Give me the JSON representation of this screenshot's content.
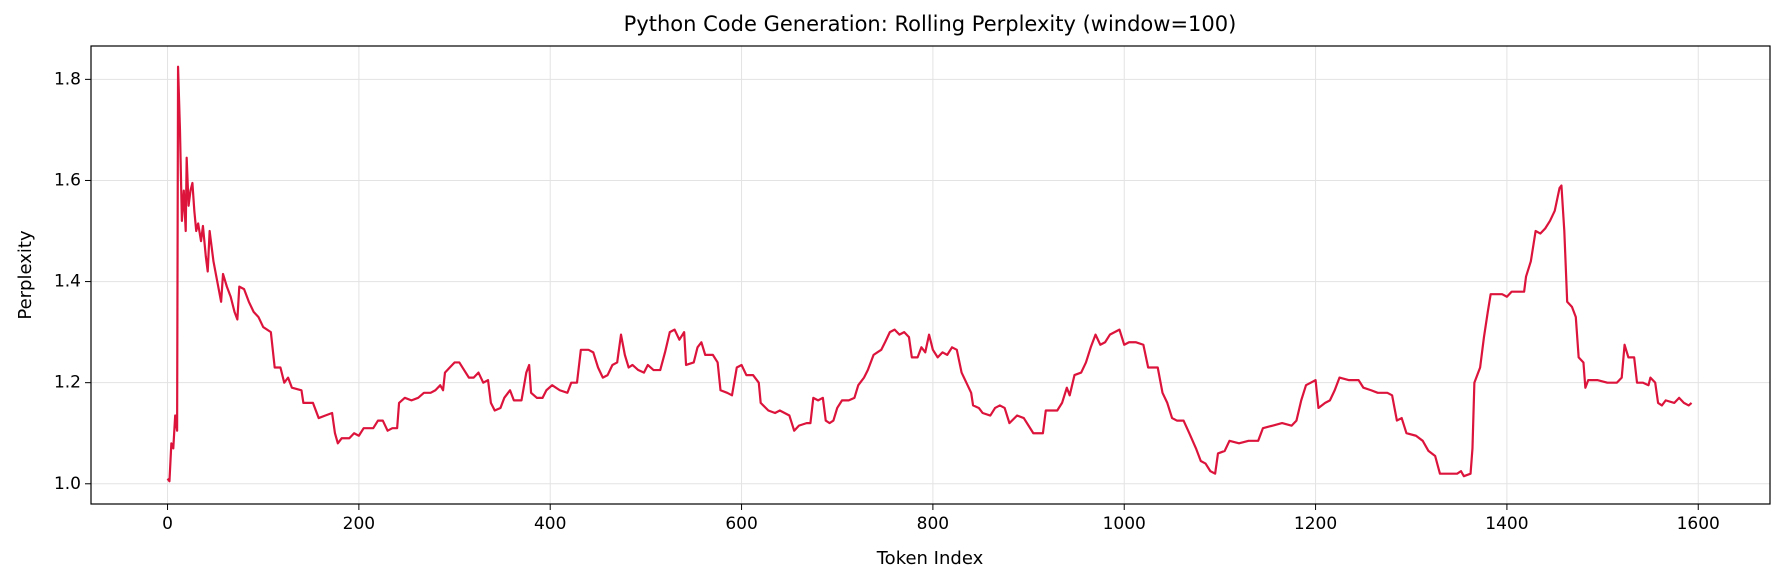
{
  "chart_data": {
    "type": "line",
    "title": "Python Code Generation: Rolling Perplexity (window=100)",
    "xlabel": "Token Index",
    "ylabel": "Perplexity",
    "color": "#dc143c",
    "grid": true,
    "xlim": [
      -80,
      1675
    ],
    "ylim": [
      0.96,
      1.866
    ],
    "xticks": [
      0,
      200,
      400,
      600,
      800,
      1000,
      1200,
      1400,
      1600
    ],
    "yticks": [
      {
        "value": 1,
        "label": "1.0"
      },
      1.2,
      1.4,
      1.6,
      1.8
    ],
    "x": [
      0,
      2,
      4,
      6,
      8,
      10,
      11,
      13,
      15,
      17,
      19,
      20,
      22,
      24,
      26,
      28,
      30,
      32,
      35,
      37,
      40,
      42,
      44,
      48,
      52,
      56,
      58,
      62,
      66,
      70,
      73,
      75,
      80,
      85,
      90,
      95,
      100,
      108,
      112,
      118,
      122,
      126,
      130,
      140,
      142,
      152,
      158,
      165,
      172,
      175,
      178,
      182,
      190,
      195,
      200,
      205,
      215,
      220,
      225,
      230,
      235,
      240,
      242,
      248,
      255,
      262,
      268,
      275,
      280,
      285,
      288,
      290,
      295,
      300,
      305,
      310,
      315,
      320,
      325,
      330,
      335,
      338,
      342,
      348,
      352,
      358,
      362,
      370,
      375,
      378,
      380,
      386,
      392,
      396,
      402,
      410,
      418,
      422,
      428,
      432,
      440,
      445,
      450,
      455,
      460,
      465,
      470,
      474,
      478,
      482,
      486,
      492,
      498,
      502,
      508,
      515,
      520,
      525,
      530,
      535,
      540,
      542,
      550,
      554,
      558,
      562,
      570,
      575,
      578,
      585,
      590,
      595,
      600,
      605,
      612,
      618,
      620,
      628,
      635,
      640,
      645,
      650,
      655,
      660,
      668,
      672,
      675,
      680,
      685,
      688,
      692,
      696,
      700,
      705,
      712,
      718,
      722,
      728,
      732,
      738,
      742,
      746,
      750,
      755,
      760,
      765,
      770,
      775,
      778,
      784,
      788,
      792,
      796,
      800,
      805,
      810,
      815,
      820,
      825,
      830,
      835,
      840,
      842,
      848,
      852,
      860,
      865,
      870,
      875,
      880,
      888,
      895,
      900,
      905,
      910,
      915,
      918,
      925,
      930,
      935,
      940,
      943,
      948,
      955,
      960,
      965,
      970,
      975,
      980,
      985,
      990,
      995,
      1000,
      1005,
      1012,
      1020,
      1025,
      1035,
      1040,
      1045,
      1050,
      1055,
      1062,
      1068,
      1075,
      1080,
      1085,
      1090,
      1095,
      1098,
      1105,
      1110,
      1120,
      1130,
      1140,
      1145,
      1155,
      1165,
      1175,
      1180,
      1185,
      1190,
      1195,
      1200,
      1203,
      1210,
      1215,
      1220,
      1225,
      1235,
      1245,
      1250,
      1258,
      1265,
      1275,
      1280,
      1285,
      1290,
      1295,
      1305,
      1312,
      1318,
      1325,
      1330,
      1340,
      1348,
      1352,
      1355,
      1362,
      1364,
      1366,
      1372,
      1376,
      1380,
      1383,
      1395,
      1400,
      1405,
      1418,
      1420,
      1425,
      1430,
      1435,
      1440,
      1445,
      1450,
      1455,
      1457,
      1460,
      1463,
      1468,
      1472,
      1475,
      1480,
      1482,
      1485,
      1495,
      1505,
      1515,
      1520,
      1523,
      1527,
      1533,
      1536,
      1542,
      1548,
      1550,
      1555,
      1558,
      1562,
      1566,
      1575,
      1580,
      1585,
      1590,
      1593
    ],
    "values": [
      1.01,
      1.005,
      1.08,
      1.07,
      1.135,
      1.105,
      1.825,
      1.7,
      1.52,
      1.58,
      1.5,
      1.645,
      1.55,
      1.58,
      1.595,
      1.54,
      1.5,
      1.515,
      1.48,
      1.51,
      1.45,
      1.42,
      1.5,
      1.44,
      1.4,
      1.36,
      1.415,
      1.39,
      1.37,
      1.34,
      1.325,
      1.39,
      1.385,
      1.36,
      1.34,
      1.33,
      1.31,
      1.3,
      1.23,
      1.23,
      1.2,
      1.21,
      1.19,
      1.185,
      1.16,
      1.16,
      1.13,
      1.135,
      1.14,
      1.1,
      1.08,
      1.09,
      1.09,
      1.1,
      1.095,
      1.11,
      1.11,
      1.125,
      1.125,
      1.105,
      1.11,
      1.11,
      1.16,
      1.17,
      1.165,
      1.17,
      1.18,
      1.18,
      1.185,
      1.195,
      1.185,
      1.22,
      1.23,
      1.24,
      1.24,
      1.225,
      1.21,
      1.21,
      1.22,
      1.2,
      1.205,
      1.16,
      1.145,
      1.15,
      1.17,
      1.185,
      1.165,
      1.165,
      1.22,
      1.235,
      1.18,
      1.17,
      1.17,
      1.185,
      1.195,
      1.185,
      1.18,
      1.2,
      1.2,
      1.265,
      1.265,
      1.26,
      1.23,
      1.21,
      1.215,
      1.235,
      1.24,
      1.295,
      1.255,
      1.23,
      1.235,
      1.225,
      1.22,
      1.235,
      1.225,
      1.225,
      1.26,
      1.3,
      1.305,
      1.285,
      1.3,
      1.235,
      1.24,
      1.27,
      1.28,
      1.255,
      1.255,
      1.24,
      1.185,
      1.18,
      1.175,
      1.23,
      1.235,
      1.215,
      1.215,
      1.2,
      1.16,
      1.145,
      1.14,
      1.145,
      1.14,
      1.135,
      1.105,
      1.115,
      1.12,
      1.12,
      1.17,
      1.165,
      1.17,
      1.125,
      1.12,
      1.125,
      1.15,
      1.165,
      1.165,
      1.17,
      1.195,
      1.21,
      1.225,
      1.255,
      1.26,
      1.265,
      1.28,
      1.3,
      1.305,
      1.295,
      1.3,
      1.29,
      1.25,
      1.25,
      1.27,
      1.26,
      1.295,
      1.265,
      1.25,
      1.26,
      1.255,
      1.27,
      1.265,
      1.22,
      1.2,
      1.18,
      1.155,
      1.15,
      1.14,
      1.135,
      1.15,
      1.155,
      1.15,
      1.12,
      1.135,
      1.13,
      1.115,
      1.1,
      1.1,
      1.1,
      1.145,
      1.145,
      1.145,
      1.16,
      1.19,
      1.175,
      1.215,
      1.22,
      1.24,
      1.27,
      1.295,
      1.275,
      1.28,
      1.295,
      1.3,
      1.305,
      1.275,
      1.28,
      1.28,
      1.275,
      1.23,
      1.23,
      1.18,
      1.16,
      1.13,
      1.125,
      1.125,
      1.1,
      1.07,
      1.045,
      1.04,
      1.025,
      1.02,
      1.06,
      1.065,
      1.085,
      1.08,
      1.085,
      1.085,
      1.11,
      1.115,
      1.12,
      1.115,
      1.125,
      1.165,
      1.195,
      1.2,
      1.205,
      1.15,
      1.16,
      1.165,
      1.185,
      1.21,
      1.205,
      1.205,
      1.19,
      1.185,
      1.18,
      1.18,
      1.175,
      1.125,
      1.13,
      1.1,
      1.095,
      1.085,
      1.065,
      1.055,
      1.02,
      1.02,
      1.02,
      1.025,
      1.015,
      1.02,
      1.07,
      1.2,
      1.23,
      1.29,
      1.34,
      1.375,
      1.375,
      1.37,
      1.38,
      1.38,
      1.41,
      1.44,
      1.5,
      1.495,
      1.505,
      1.52,
      1.54,
      1.585,
      1.59,
      1.5,
      1.36,
      1.35,
      1.33,
      1.25,
      1.24,
      1.19,
      1.205,
      1.205,
      1.2,
      1.2,
      1.21,
      1.275,
      1.25,
      1.25,
      1.2,
      1.2,
      1.195,
      1.21,
      1.2,
      1.16,
      1.155,
      1.165,
      1.16,
      1.17,
      1.16,
      1.155,
      1.16
    ]
  }
}
